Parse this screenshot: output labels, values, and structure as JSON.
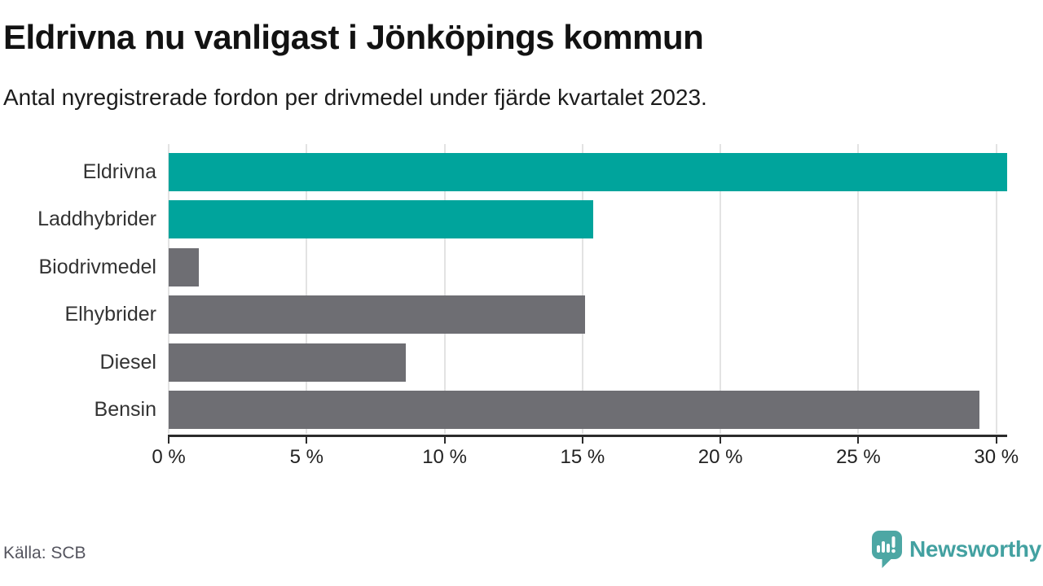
{
  "header": {
    "title": "Eldrivna nu vanligast i Jönköpings kommun",
    "subtitle": "Antal nyregistrerade fordon per drivmedel under fjärde kvartalet 2023."
  },
  "chart_data": {
    "type": "bar",
    "orientation": "horizontal",
    "title": "Eldrivna nu vanligast i Jönköpings kommun",
    "subtitle": "Antal nyregistrerade fordon per drivmedel under fjärde kvartalet 2023.",
    "categories": [
      "Eldrivna",
      "Laddhybrider",
      "Biodrivmedel",
      "Elhybrider",
      "Diesel",
      "Bensin"
    ],
    "values": [
      30.4,
      15.4,
      1.1,
      15.1,
      8.6,
      29.4
    ],
    "unit": "%",
    "bar_colors": [
      "#00a49c",
      "#00a49c",
      "#6e6e73",
      "#6e6e73",
      "#6e6e73",
      "#6e6e73"
    ],
    "highlight_color": "#00a49c",
    "default_color": "#6e6e73",
    "x_ticks": [
      0,
      5,
      10,
      15,
      20,
      25,
      30
    ],
    "x_tick_labels": [
      "0 %",
      "5 %",
      "10 %",
      "15 %",
      "20 %",
      "25 %",
      "30 %"
    ],
    "xlim": [
      0,
      30.4
    ],
    "grid": true,
    "legend": "none",
    "value_labels": "none"
  },
  "footer": {
    "source": "Källa: SCB",
    "brand": "Newsworthy",
    "brand_color": "#43a1a1",
    "logo_icon": "speech-bubble-bar-chart-exclamation-icon"
  }
}
